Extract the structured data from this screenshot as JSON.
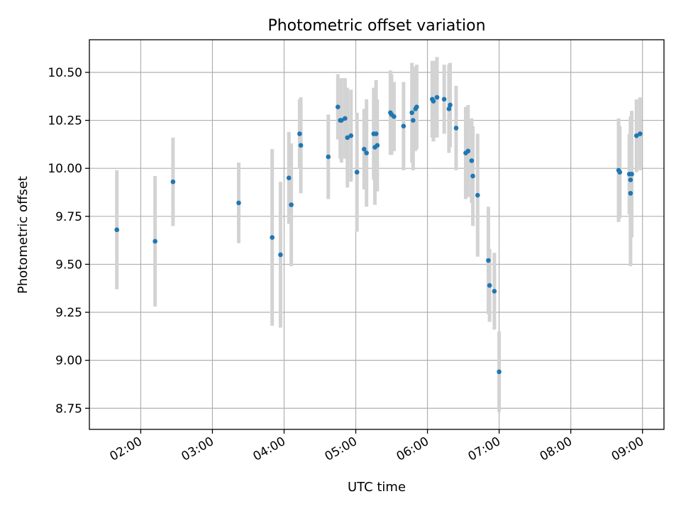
{
  "chart_data": {
    "type": "scatter",
    "title": "Photometric offset variation",
    "xlabel": "UTC time",
    "ylabel": "Photometric offset",
    "x_is_time": true,
    "xlim": [
      "01:17",
      "09:18"
    ],
    "ylim": [
      8.64,
      10.67
    ],
    "grid": true,
    "xticks": [
      "02:00",
      "03:00",
      "04:00",
      "05:00",
      "06:00",
      "07:00",
      "08:00",
      "09:00"
    ],
    "yticks": [
      8.75,
      9.0,
      9.25,
      9.5,
      9.75,
      10.0,
      10.25,
      10.5
    ],
    "ytick_labels": [
      "8.75",
      "9.00",
      "9.25",
      "9.50",
      "9.75",
      "10.00",
      "10.25",
      "10.50"
    ],
    "point_color": "#1f77b4",
    "errorbar_color": "#d3d3d3",
    "series": [
      {
        "x": [
          "01:40",
          "02:12",
          "02:27",
          "03:22",
          "03:50",
          "03:57",
          "04:04",
          "04:06",
          "04:13",
          "04:14",
          "04:37",
          "04:45",
          "04:47",
          "04:48",
          "04:51",
          "04:53",
          "04:56",
          "05:01",
          "05:07",
          "05:09",
          "05:15",
          "05:16",
          "05:17",
          "05:18",
          "05:29",
          "05:30",
          "05:32",
          "05:40",
          "05:47",
          "05:48",
          "05:50",
          "05:51",
          "06:04",
          "06:05",
          "06:08",
          "06:14",
          "06:18",
          "06:19",
          "06:24",
          "06:32",
          "06:34",
          "06:37",
          "06:38",
          "06:42",
          "06:51",
          "06:52",
          "06:56",
          "07:00",
          "08:40",
          "08:41",
          "08:49",
          "08:50",
          "08:50",
          "08:51",
          "08:55",
          "08:58"
        ],
        "y": [
          9.68,
          9.62,
          9.93,
          9.82,
          9.64,
          9.55,
          9.95,
          9.81,
          10.18,
          10.12,
          10.06,
          10.32,
          10.25,
          10.25,
          10.26,
          10.16,
          10.17,
          9.98,
          10.1,
          10.08,
          10.18,
          10.11,
          10.18,
          10.12,
          10.29,
          10.28,
          10.27,
          10.22,
          10.29,
          10.25,
          10.31,
          10.32,
          10.36,
          10.35,
          10.37,
          10.36,
          10.31,
          10.33,
          10.21,
          10.08,
          10.09,
          10.04,
          9.96,
          9.86,
          9.52,
          9.39,
          9.36,
          8.94,
          9.99,
          9.98,
          9.97,
          9.87,
          9.94,
          9.97,
          10.17,
          10.18
        ],
        "yerr": [
          0.31,
          0.34,
          0.23,
          0.21,
          0.46,
          0.38,
          0.24,
          0.32,
          0.18,
          0.25,
          0.22,
          0.17,
          0.2,
          0.22,
          0.21,
          0.26,
          0.24,
          0.31,
          0.21,
          0.28,
          0.24,
          0.3,
          0.28,
          0.24,
          0.22,
          0.21,
          0.18,
          0.23,
          0.26,
          0.26,
          0.22,
          0.22,
          0.2,
          0.21,
          0.21,
          0.18,
          0.23,
          0.22,
          0.22,
          0.24,
          0.24,
          0.22,
          0.26,
          0.32,
          0.28,
          0.19,
          0.2,
          0.21,
          0.27,
          0.24,
          0.21,
          0.38,
          0.33,
          0.33,
          0.19,
          0.19
        ]
      }
    ]
  }
}
